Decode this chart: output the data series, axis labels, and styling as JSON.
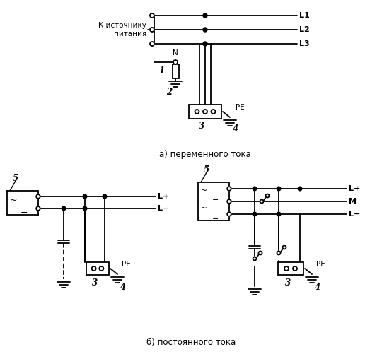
{
  "title_a": "а) переменного тока",
  "title_b": "б) постоянного тока",
  "source_text": "К источнику\nпитания",
  "bg": "#ffffff",
  "lc": "#000000",
  "lw": 1.3
}
